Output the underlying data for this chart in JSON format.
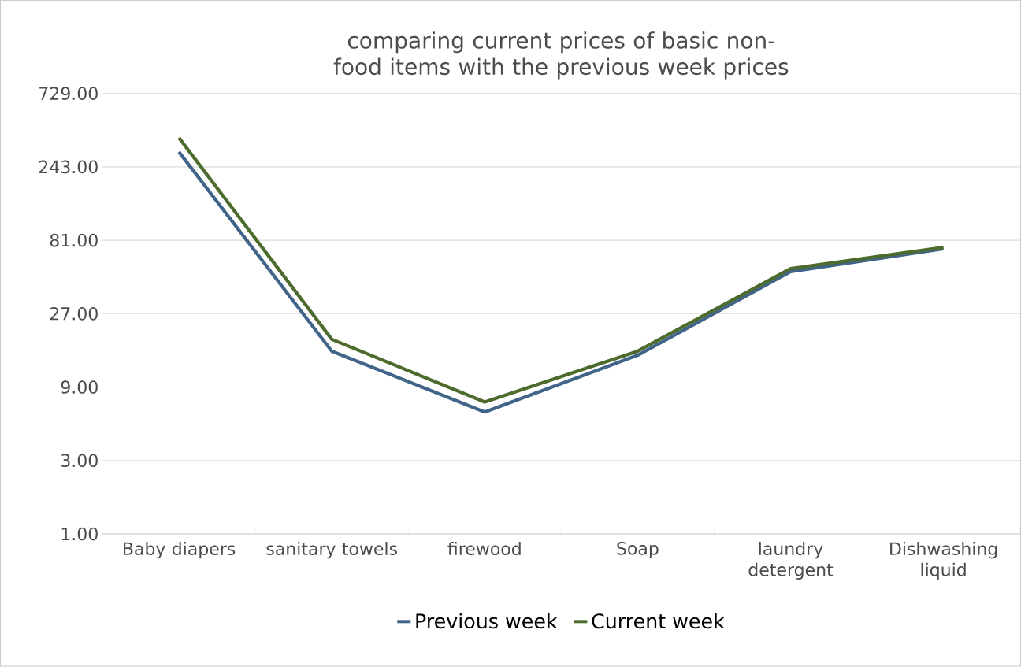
{
  "chart_data": {
    "type": "line",
    "title": "comparing current prices of basic non-food items with the previous week prices",
    "categories": [
      "Baby diapers",
      "sanitary towels",
      "firewood",
      "Soap",
      "laundry detergent",
      "Dishwashing liquid"
    ],
    "series": [
      {
        "name": "Previous week",
        "color": "#41648a",
        "values": [
          304,
          15.4,
          6.2,
          14.5,
          50.7,
          71.3
        ]
      },
      {
        "name": "Current week",
        "color": "#4e6b2e",
        "values": [
          376,
          18.4,
          7.2,
          15.4,
          53,
          72.9
        ]
      }
    ],
    "log": true,
    "ylim": [
      1,
      729
    ],
    "yticks": [
      {
        "value": 1,
        "label": "1.00"
      },
      {
        "value": 3,
        "label": "3.00"
      },
      {
        "value": 9,
        "label": "9.00"
      },
      {
        "value": 27,
        "label": "27.00"
      },
      {
        "value": 81,
        "label": "81.00"
      },
      {
        "value": 243,
        "label": "243.00"
      },
      {
        "value": 729,
        "label": "729.00"
      }
    ],
    "grid": "y",
    "legend": "bottom",
    "marker": "none",
    "line_style": "solid"
  }
}
